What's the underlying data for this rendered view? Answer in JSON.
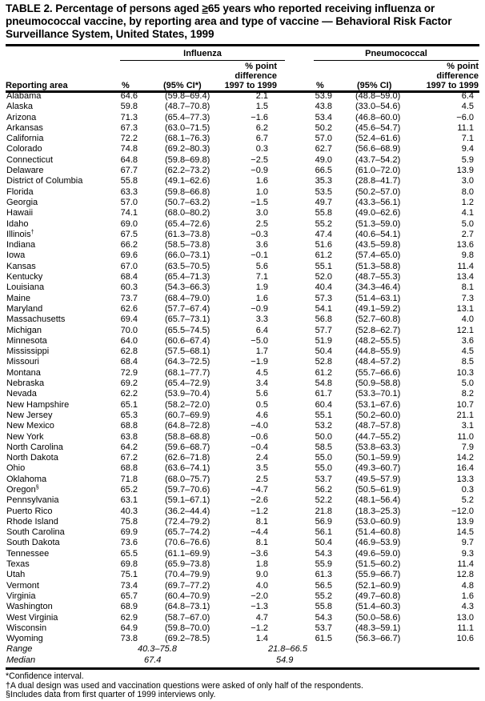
{
  "title": {
    "prefix": "TABLE 2. Percentage of persons aged ",
    "ge": "≥",
    "suffix": "65 years who reported receiving influenza or pneumococcal vaccine, by reporting area and type of vaccine — Behavioral Risk Factor Surveillance System, United States, 1999"
  },
  "headers": {
    "influenza": "Influenza",
    "pneumococcal": "Pneumococcal",
    "reporting_area": "Reporting area",
    "pct": "%",
    "ci_influenza": "(95% CI*)",
    "ci_pneumo": "(95% CI)",
    "diff_line1": "% point",
    "diff_line2": "difference",
    "diff_line3": "1997 to 1999"
  },
  "rows": [
    {
      "area": "Alabama",
      "note": "",
      "inf": [
        "64.6",
        "(59.8–69.4)",
        "2.1"
      ],
      "pne": [
        "53.9",
        "(48.8–59.0)",
        "6.4"
      ]
    },
    {
      "area": "Alaska",
      "note": "",
      "inf": [
        "59.8",
        "(48.7–70.8)",
        "1.5"
      ],
      "pne": [
        "43.8",
        "(33.0–54.6)",
        "4.5"
      ]
    },
    {
      "area": "Arizona",
      "note": "",
      "inf": [
        "71.3",
        "(65.4–77.3)",
        "−1.6"
      ],
      "pne": [
        "53.4",
        "(46.8–60.0)",
        "−6.0"
      ]
    },
    {
      "area": "Arkansas",
      "note": "",
      "inf": [
        "67.3",
        "(63.0–71.5)",
        "6.2"
      ],
      "pne": [
        "50.2",
        "(45.6–54.7)",
        "11.1"
      ]
    },
    {
      "area": "California",
      "note": "",
      "inf": [
        "72.2",
        "(68.1–76.3)",
        "6.7"
      ],
      "pne": [
        "57.0",
        "(52.4–61.6)",
        "7.1"
      ]
    },
    {
      "area": "Colorado",
      "note": "",
      "inf": [
        "74.8",
        "(69.2–80.3)",
        "0.3"
      ],
      "pne": [
        "62.7",
        "(56.6–68.9)",
        "9.4"
      ]
    },
    {
      "area": "Connecticut",
      "note": "",
      "inf": [
        "64.8",
        "(59.8–69.8)",
        "−2.5"
      ],
      "pne": [
        "49.0",
        "(43.7–54.2)",
        "5.9"
      ]
    },
    {
      "area": "Delaware",
      "note": "",
      "inf": [
        "67.7",
        "(62.2–73.2)",
        "−0.9"
      ],
      "pne": [
        "66.5",
        "(61.0–72.0)",
        "13.9"
      ]
    },
    {
      "area": "District of Columbia",
      "note": "",
      "inf": [
        "55.8",
        "(49.1–62.6)",
        "1.6"
      ],
      "pne": [
        "35.3",
        "(28.8–41.7)",
        "3.0"
      ]
    },
    {
      "area": "Florida",
      "note": "",
      "inf": [
        "63.3",
        "(59.8–66.8)",
        "1.0"
      ],
      "pne": [
        "53.5",
        "(50.2–57.0)",
        "8.0"
      ]
    },
    {
      "area": "Georgia",
      "note": "",
      "inf": [
        "57.0",
        "(50.7–63.2)",
        "−1.5"
      ],
      "pne": [
        "49.7",
        "(43.3–56.1)",
        "1.2"
      ]
    },
    {
      "area": "Hawaii",
      "note": "",
      "inf": [
        "74.1",
        "(68.0–80.2)",
        "3.0"
      ],
      "pne": [
        "55.8",
        "(49.0–62.6)",
        "4.1"
      ]
    },
    {
      "area": "Idaho",
      "note": "",
      "inf": [
        "69.0",
        "(65.4–72.6)",
        "2.5"
      ],
      "pne": [
        "55.2",
        "(51.3–59.0)",
        "5.0"
      ]
    },
    {
      "area": "Illinois",
      "note": "†",
      "inf": [
        "67.5",
        "(61.3–73.8)",
        "−0.3"
      ],
      "pne": [
        "47.4",
        "(40.6–54.1)",
        "2.7"
      ]
    },
    {
      "area": "Indiana",
      "note": "",
      "inf": [
        "66.2",
        "(58.5–73.8)",
        "3.6"
      ],
      "pne": [
        "51.6",
        "(43.5–59.8)",
        "13.6"
      ]
    },
    {
      "area": "Iowa",
      "note": "",
      "inf": [
        "69.6",
        "(66.0–73.1)",
        "−0.1"
      ],
      "pne": [
        "61.2",
        "(57.4–65.0)",
        "9.8"
      ]
    },
    {
      "area": "Kansas",
      "note": "",
      "inf": [
        "67.0",
        "(63.5–70.5)",
        "5.6"
      ],
      "pne": [
        "55.1",
        "(51.3–58.8)",
        "11.4"
      ]
    },
    {
      "area": "Kentucky",
      "note": "",
      "inf": [
        "68.4",
        "(65.4–71.3)",
        "7.1"
      ],
      "pne": [
        "52.0",
        "(48.7–55.3)",
        "13.4"
      ]
    },
    {
      "area": "Louisiana",
      "note": "",
      "inf": [
        "60.3",
        "(54.3–66.3)",
        "1.9"
      ],
      "pne": [
        "40.4",
        "(34.3–46.4)",
        "8.1"
      ]
    },
    {
      "area": "Maine",
      "note": "",
      "inf": [
        "73.7",
        "(68.4–79.0)",
        "1.6"
      ],
      "pne": [
        "57.3",
        "(51.4–63.1)",
        "7.3"
      ]
    },
    {
      "area": "Maryland",
      "note": "",
      "inf": [
        "62.6",
        "(57.7–67.4)",
        "−0.9"
      ],
      "pne": [
        "54.1",
        "(49.1–59.2)",
        "13.1"
      ]
    },
    {
      "area": "Massachusetts",
      "note": "",
      "inf": [
        "69.4",
        "(65.7–73.1)",
        "3.3"
      ],
      "pne": [
        "56.8",
        "(52.7–60.8)",
        "4.0"
      ]
    },
    {
      "area": "Michigan",
      "note": "",
      "inf": [
        "70.0",
        "(65.5–74.5)",
        "6.4"
      ],
      "pne": [
        "57.7",
        "(52.8–62.7)",
        "12.1"
      ]
    },
    {
      "area": "Minnesota",
      "note": "",
      "inf": [
        "64.0",
        "(60.6–67.4)",
        "−5.0"
      ],
      "pne": [
        "51.9",
        "(48.2–55.5)",
        "3.6"
      ]
    },
    {
      "area": "Mississippi",
      "note": "",
      "inf": [
        "62.8",
        "(57.5–68.1)",
        "1.7"
      ],
      "pne": [
        "50.4",
        "(44.8–55.9)",
        "4.5"
      ]
    },
    {
      "area": "Missouri",
      "note": "",
      "inf": [
        "68.4",
        "(64.3–72.5)",
        "−1.9"
      ],
      "pne": [
        "52.8",
        "(48.4–57.2)",
        "8.5"
      ]
    },
    {
      "area": "Montana",
      "note": "",
      "inf": [
        "72.9",
        "(68.1–77.7)",
        "4.5"
      ],
      "pne": [
        "61.2",
        "(55.7–66.6)",
        "10.3"
      ]
    },
    {
      "area": "Nebraska",
      "note": "",
      "inf": [
        "69.2",
        "(65.4–72.9)",
        "3.4"
      ],
      "pne": [
        "54.8",
        "(50.9–58.8)",
        "5.0"
      ]
    },
    {
      "area": "Nevada",
      "note": "",
      "inf": [
        "62.2",
        "(53.9–70.4)",
        "5.6"
      ],
      "pne": [
        "61.7",
        "(53.3–70.1)",
        "8.2"
      ]
    },
    {
      "area": "New Hampshire",
      "note": "",
      "inf": [
        "65.1",
        "(58.2–72.0)",
        "0.5"
      ],
      "pne": [
        "60.4",
        "(53.1–67.6)",
        "10.7"
      ]
    },
    {
      "area": "New Jersey",
      "note": "",
      "inf": [
        "65.3",
        "(60.7–69.9)",
        "4.6"
      ],
      "pne": [
        "55.1",
        "(50.2–60.0)",
        "21.1"
      ]
    },
    {
      "area": "New Mexico",
      "note": "",
      "inf": [
        "68.8",
        "(64.8–72.8)",
        "−4.0"
      ],
      "pne": [
        "53.2",
        "(48.7–57.8)",
        "3.1"
      ]
    },
    {
      "area": "New York",
      "note": "",
      "inf": [
        "63.8",
        "(58.8–68.8)",
        "−0.6"
      ],
      "pne": [
        "50.0",
        "(44.7–55.2)",
        "11.0"
      ]
    },
    {
      "area": "North Carolina",
      "note": "",
      "inf": [
        "64.2",
        "(59.6–68.7)",
        "−0.4"
      ],
      "pne": [
        "58.5",
        "(53.8–63.3)",
        "7.9"
      ]
    },
    {
      "area": "North Dakota",
      "note": "",
      "inf": [
        "67.2",
        "(62.6–71.8)",
        "2.4"
      ],
      "pne": [
        "55.0",
        "(50.1–59.9)",
        "14.2"
      ]
    },
    {
      "area": "Ohio",
      "note": "",
      "inf": [
        "68.8",
        "(63.6–74.1)",
        "3.5"
      ],
      "pne": [
        "55.0",
        "(49.3–60.7)",
        "16.4"
      ]
    },
    {
      "area": "Oklahoma",
      "note": "",
      "inf": [
        "71.8",
        "(68.0–75.7)",
        "2.5"
      ],
      "pne": [
        "53.7",
        "(49.5–57.9)",
        "13.3"
      ]
    },
    {
      "area": "Oregon",
      "note": "§",
      "inf": [
        "65.2",
        "(59.7–70.6)",
        "−4.7"
      ],
      "pne": [
        "56.2",
        "(50.5–61.9)",
        "0.3"
      ]
    },
    {
      "area": "Pennsylvania",
      "note": "",
      "inf": [
        "63.1",
        "(59.1–67.1)",
        "−2.6"
      ],
      "pne": [
        "52.2",
        "(48.1–56.4)",
        "5.2"
      ]
    },
    {
      "area": "Puerto Rico",
      "note": "",
      "inf": [
        "40.3",
        "(36.2–44.4)",
        "−1.2"
      ],
      "pne": [
        "21.8",
        "(18.3–25.3)",
        "−12.0"
      ]
    },
    {
      "area": "Rhode Island",
      "note": "",
      "inf": [
        "75.8",
        "(72.4–79.2)",
        "8.1"
      ],
      "pne": [
        "56.9",
        "(53.0–60.9)",
        "13.9"
      ]
    },
    {
      "area": "South Carolina",
      "note": "",
      "inf": [
        "69.9",
        "(65.7–74.2)",
        "−4.4"
      ],
      "pne": [
        "56.1",
        "(51.4–60.8)",
        "14.5"
      ]
    },
    {
      "area": "South Dakota",
      "note": "",
      "inf": [
        "73.6",
        "(70.6–76.6)",
        "8.1"
      ],
      "pne": [
        "50.4",
        "(46.9–53.9)",
        "9.7"
      ]
    },
    {
      "area": "Tennessee",
      "note": "",
      "inf": [
        "65.5",
        "(61.1–69.9)",
        "−3.6"
      ],
      "pne": [
        "54.3",
        "(49.6–59.0)",
        "9.3"
      ]
    },
    {
      "area": "Texas",
      "note": "",
      "inf": [
        "69.8",
        "(65.9–73.8)",
        "1.8"
      ],
      "pne": [
        "55.9",
        "(51.5–60.2)",
        "11.4"
      ]
    },
    {
      "area": "Utah",
      "note": "",
      "inf": [
        "75.1",
        "(70.4–79.9)",
        "9.0"
      ],
      "pne": [
        "61.3",
        "(55.9–66.7)",
        "12.8"
      ]
    },
    {
      "area": "Vermont",
      "note": "",
      "inf": [
        "73.4",
        "(69.7–77.2)",
        "4.0"
      ],
      "pne": [
        "56.5",
        "(52.1–60.9)",
        "4.8"
      ]
    },
    {
      "area": "Virginia",
      "note": "",
      "inf": [
        "65.7",
        "(60.4–70.9)",
        "−2.0"
      ],
      "pne": [
        "55.2",
        "(49.7–60.8)",
        "1.6"
      ]
    },
    {
      "area": "Washington",
      "note": "",
      "inf": [
        "68.9",
        "(64.8–73.1)",
        "−1.3"
      ],
      "pne": [
        "55.8",
        "(51.4–60.3)",
        "4.3"
      ]
    },
    {
      "area": "West Virginia",
      "note": "",
      "inf": [
        "62.9",
        "(58.7–67.0)",
        "4.7"
      ],
      "pne": [
        "54.3",
        "(50.0–58.6)",
        "13.0"
      ]
    },
    {
      "area": "Wisconsin",
      "note": "",
      "inf": [
        "64.9",
        "(59.8–70.0)",
        "−1.2"
      ],
      "pne": [
        "53.7",
        "(48.3–59.1)",
        "11.1"
      ]
    },
    {
      "area": "Wyoming",
      "note": "",
      "inf": [
        "73.8",
        "(69.2–78.5)",
        "1.4"
      ],
      "pne": [
        "61.5",
        "(56.3–66.7)",
        "10.6"
      ]
    }
  ],
  "summary": [
    {
      "label": "Range",
      "inf": "40.3–75.8",
      "pne": "21.8–66.5"
    },
    {
      "label": "Median",
      "inf": "67.4",
      "pne": "54.9"
    }
  ],
  "footnotes": [
    "*Confidence interval.",
    "†A dual design was used and vaccination questions were asked of only half of the respondents.",
    "§Includes data from first quarter of 1999 interviews only."
  ]
}
